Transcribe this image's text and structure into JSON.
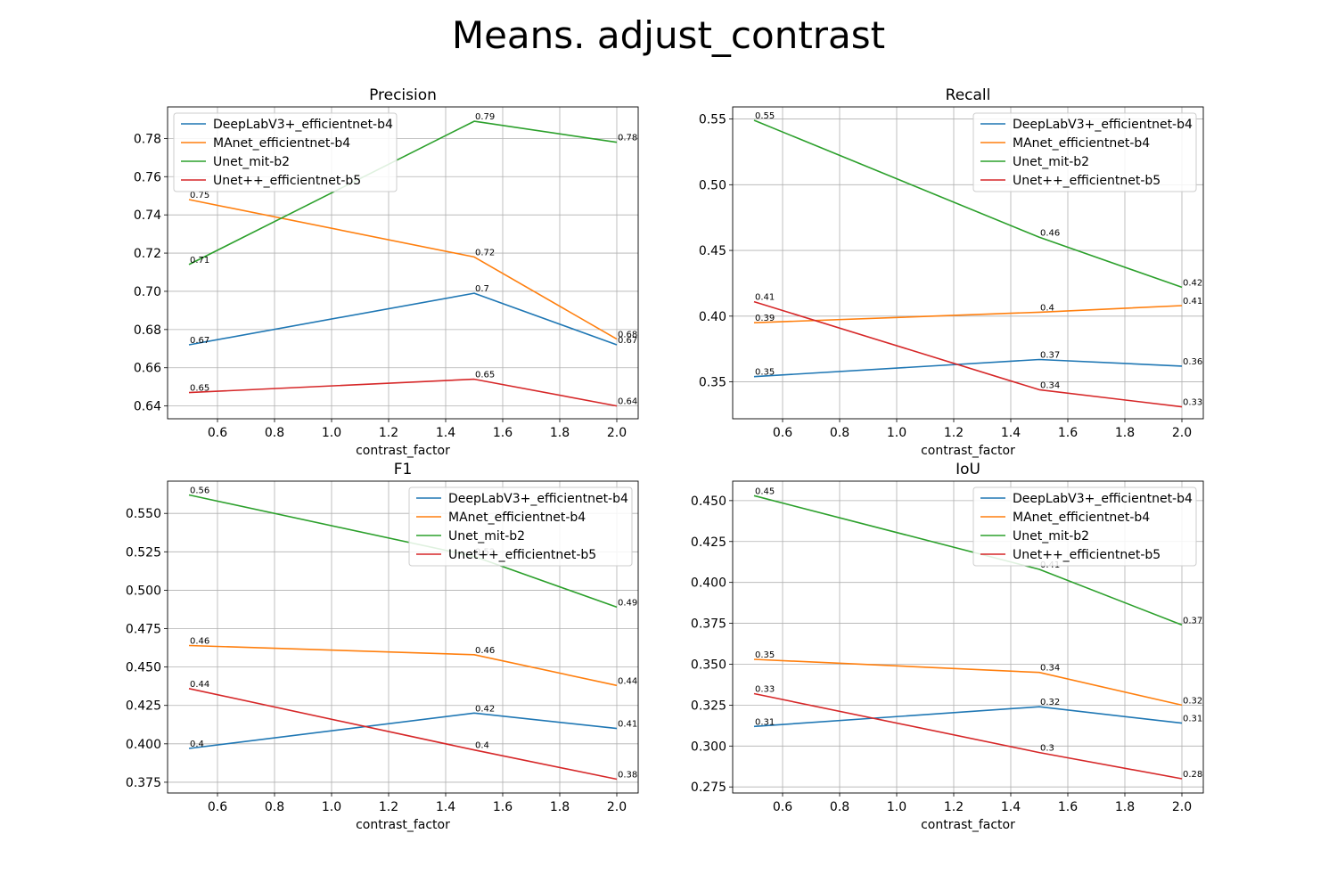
{
  "title": "Means. adjust_contrast",
  "chart_data": [
    {
      "type": "line",
      "title": "Precision",
      "xlabel": "contrast_factor",
      "ylabel": "",
      "x": [
        0.5,
        1.5,
        2.0
      ],
      "xlim": [
        0.425,
        2.075
      ],
      "xticks": [
        0.6,
        0.8,
        1.0,
        1.2,
        1.4,
        1.6,
        1.8,
        2.0
      ],
      "xtick_labels": [
        "0.6",
        "0.8",
        "1.0",
        "1.2",
        "1.4",
        "1.6",
        "1.8",
        "2.0"
      ],
      "ylim": [
        0.6333,
        0.7965
      ],
      "yticks": [
        0.64,
        0.66,
        0.68,
        0.7,
        0.72,
        0.74,
        0.76,
        0.78
      ],
      "ytick_labels": [
        "0.64",
        "0.66",
        "0.68",
        "0.70",
        "0.72",
        "0.74",
        "0.76",
        "0.78"
      ],
      "grid": true,
      "legend_position": "upper left",
      "series": [
        {
          "name": "DeepLabV3+_efficientnet-b4",
          "values": [
            0.672,
            0.699,
            0.672
          ],
          "labels": [
            "0.67",
            "0.7",
            "0.67"
          ]
        },
        {
          "name": "MAnet_efficientnet-b4",
          "values": [
            0.748,
            0.718,
            0.675
          ],
          "labels": [
            "0.75",
            "0.72",
            "0.68"
          ]
        },
        {
          "name": "Unet_mit-b2",
          "values": [
            0.714,
            0.789,
            0.778
          ],
          "labels": [
            "0.71",
            "0.79",
            "0.78"
          ]
        },
        {
          "name": "Unet++_efficientnet-b5",
          "values": [
            0.647,
            0.654,
            0.64
          ],
          "labels": [
            "0.65",
            "0.65",
            "0.64"
          ]
        }
      ]
    },
    {
      "type": "line",
      "title": "Recall",
      "xlabel": "contrast_factor",
      "ylabel": "",
      "x": [
        0.5,
        1.5,
        2.0
      ],
      "xlim": [
        0.425,
        2.075
      ],
      "xticks": [
        0.6,
        0.8,
        1.0,
        1.2,
        1.4,
        1.6,
        1.8,
        2.0
      ],
      "xtick_labels": [
        "0.6",
        "0.8",
        "1.0",
        "1.2",
        "1.4",
        "1.6",
        "1.8",
        "2.0"
      ],
      "ylim": [
        0.3219,
        0.5592
      ],
      "yticks": [
        0.35,
        0.4,
        0.45,
        0.5,
        0.55
      ],
      "ytick_labels": [
        "0.35",
        "0.40",
        "0.45",
        "0.50",
        "0.55"
      ],
      "grid": true,
      "legend_position": "upper right",
      "series": [
        {
          "name": "DeepLabV3+_efficientnet-b4",
          "values": [
            0.354,
            0.367,
            0.362
          ],
          "labels": [
            "0.35",
            "0.37",
            "0.36"
          ]
        },
        {
          "name": "MAnet_efficientnet-b4",
          "values": [
            0.395,
            0.403,
            0.408
          ],
          "labels": [
            "0.39",
            "0.4",
            "0.41"
          ]
        },
        {
          "name": "Unet_mit-b2",
          "values": [
            0.549,
            0.46,
            0.422
          ],
          "labels": [
            "0.55",
            "0.46",
            "0.42"
          ]
        },
        {
          "name": "Unet++_efficientnet-b5",
          "values": [
            0.411,
            0.344,
            0.331
          ],
          "labels": [
            "0.41",
            "0.34",
            "0.33"
          ]
        }
      ]
    },
    {
      "type": "line",
      "title": "F1",
      "xlabel": "contrast_factor",
      "ylabel": "",
      "x": [
        0.5,
        1.5,
        2.0
      ],
      "xlim": [
        0.425,
        2.075
      ],
      "xticks": [
        0.6,
        0.8,
        1.0,
        1.2,
        1.4,
        1.6,
        1.8,
        2.0
      ],
      "xtick_labels": [
        "0.6",
        "0.8",
        "1.0",
        "1.2",
        "1.4",
        "1.6",
        "1.8",
        "2.0"
      ],
      "ylim": [
        0.368,
        0.571
      ],
      "yticks": [
        0.375,
        0.4,
        0.425,
        0.45,
        0.475,
        0.5,
        0.525,
        0.55
      ],
      "ytick_labels": [
        "0.375",
        "0.400",
        "0.425",
        "0.450",
        "0.475",
        "0.500",
        "0.525",
        "0.550"
      ],
      "grid": true,
      "legend_position": "upper right",
      "series": [
        {
          "name": "DeepLabV3+_efficientnet-b4",
          "values": [
            0.397,
            0.42,
            0.41
          ],
          "labels": [
            "0.4",
            "0.42",
            "0.41"
          ]
        },
        {
          "name": "MAnet_efficientnet-b4",
          "values": [
            0.464,
            0.458,
            0.438
          ],
          "labels": [
            "0.46",
            "0.46",
            "0.44"
          ]
        },
        {
          "name": "Unet_mit-b2",
          "values": [
            0.562,
            0.522,
            0.489
          ],
          "labels": [
            "0.56",
            "0.52",
            "0.49"
          ]
        },
        {
          "name": "Unet++_efficientnet-b5",
          "values": [
            0.436,
            0.396,
            0.377
          ],
          "labels": [
            "0.44",
            "0.4",
            "0.38"
          ]
        }
      ]
    },
    {
      "type": "line",
      "title": "IoU",
      "xlabel": "contrast_factor",
      "ylabel": "",
      "x": [
        0.5,
        1.5,
        2.0
      ],
      "xlim": [
        0.425,
        2.075
      ],
      "xticks": [
        0.6,
        0.8,
        1.0,
        1.2,
        1.4,
        1.6,
        1.8,
        2.0
      ],
      "xtick_labels": [
        "0.6",
        "0.8",
        "1.0",
        "1.2",
        "1.4",
        "1.6",
        "1.8",
        "2.0"
      ],
      "ylim": [
        0.2713,
        0.4619
      ],
      "yticks": [
        0.275,
        0.3,
        0.325,
        0.35,
        0.375,
        0.4,
        0.425,
        0.45
      ],
      "ytick_labels": [
        "0.275",
        "0.300",
        "0.325",
        "0.350",
        "0.375",
        "0.400",
        "0.425",
        "0.450"
      ],
      "grid": true,
      "legend_position": "upper right",
      "series": [
        {
          "name": "DeepLabV3+_efficientnet-b4",
          "values": [
            0.312,
            0.324,
            0.314
          ],
          "labels": [
            "0.31",
            "0.32",
            "0.31"
          ]
        },
        {
          "name": "MAnet_efficientnet-b4",
          "values": [
            0.353,
            0.345,
            0.325
          ],
          "labels": [
            "0.35",
            "0.34",
            "0.32"
          ]
        },
        {
          "name": "Unet_mit-b2",
          "values": [
            0.453,
            0.408,
            0.374
          ],
          "labels": [
            "0.45",
            "0.41",
            "0.37"
          ]
        },
        {
          "name": "Unet++_efficientnet-b5",
          "values": [
            0.332,
            0.296,
            0.28
          ],
          "labels": [
            "0.33",
            "0.3",
            "0.28"
          ]
        }
      ]
    }
  ],
  "colors": {
    "DeepLabV3+_efficientnet-b4": "#1f77b4",
    "MAnet_efficientnet-b4": "#ff7f0e",
    "Unet_mit-b2": "#2ca02c",
    "Unet++_efficientnet-b5": "#d62728",
    "grid": "#b0b0b0",
    "axes": "#000000"
  }
}
